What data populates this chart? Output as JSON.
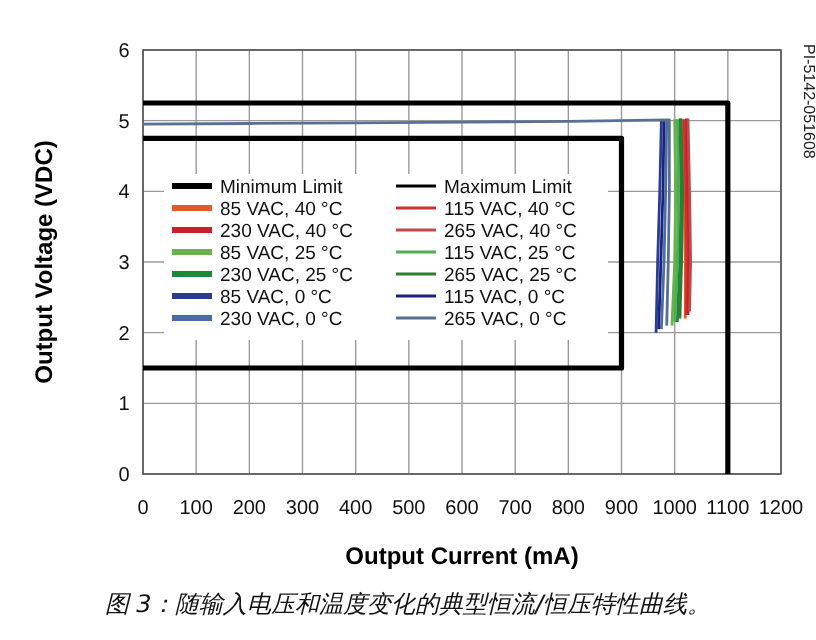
{
  "chart_data": {
    "type": "line",
    "xlabel": "Output Current (mA)",
    "ylabel": "Output Voltage (VDC)",
    "xlim": [
      0,
      1200
    ],
    "ylim": [
      0,
      6
    ],
    "xticks": [
      0,
      100,
      200,
      300,
      400,
      500,
      600,
      700,
      800,
      900,
      1000,
      1100,
      1200
    ],
    "yticks": [
      0,
      1,
      2,
      3,
      4,
      5,
      6
    ],
    "grid": true,
    "legend": "left",
    "annotations": [
      "PI-5142-051608",
      "图 3：随输入电压和温度变化的典型恒流/恒压特性曲线。"
    ],
    "series": [
      {
        "name": "Minimum Limit",
        "color": "#000000",
        "x": [
          0,
          900,
          900,
          0
        ],
        "values": [
          4.75,
          4.75,
          1.5,
          1.5
        ]
      },
      {
        "name": "Maximum Limit",
        "color": "#000000",
        "x": [
          0,
          1100,
          1100
        ],
        "values": [
          5.25,
          5.25,
          0
        ]
      },
      {
        "name": "85 VAC, 40 °C",
        "color": "#e05a2a",
        "x": [
          1015,
          1018,
          1020,
          1020
        ],
        "values": [
          5.02,
          4.0,
          3.0,
          2.2
        ]
      },
      {
        "name": "115 VAC, 40 °C",
        "color": "#d43030",
        "x": [
          1018,
          1021,
          1023,
          1022
        ],
        "values": [
          5.02,
          4.0,
          3.0,
          2.25
        ]
      },
      {
        "name": "230 VAC, 40 °C",
        "color": "#c8202a",
        "x": [
          1022,
          1025,
          1027,
          1025
        ],
        "values": [
          5.03,
          4.0,
          3.0,
          2.25
        ]
      },
      {
        "name": "265 VAC, 40 °C",
        "color": "#c04848",
        "x": [
          1025,
          1028,
          1030,
          1028
        ],
        "values": [
          5.03,
          4.0,
          3.0,
          2.3
        ]
      },
      {
        "name": "85 VAC, 25 °C",
        "color": "#6ab04c",
        "x": [
          1000,
          1002,
          1000,
          995
        ],
        "values": [
          5.02,
          4.0,
          3.0,
          2.1
        ]
      },
      {
        "name": "115 VAC, 25 °C",
        "color": "#4caf50",
        "x": [
          1005,
          1007,
          1005,
          1000
        ],
        "values": [
          5.02,
          4.0,
          3.0,
          2.15
        ]
      },
      {
        "name": "230 VAC, 25 °C",
        "color": "#1a8a3a",
        "x": [
          1010,
          1012,
          1010,
          1005
        ],
        "values": [
          5.03,
          4.0,
          3.0,
          2.15
        ]
      },
      {
        "name": "265 VAC, 25 °C",
        "color": "#2e7d32",
        "x": [
          1012,
          1015,
          1013,
          1010
        ],
        "values": [
          5.03,
          4.0,
          3.0,
          2.2
        ]
      },
      {
        "name": "85 VAC, 0 °C",
        "color": "#2a3d8f",
        "x": [
          975,
          972,
          968,
          965
        ],
        "values": [
          5.0,
          4.0,
          3.0,
          2.0
        ]
      },
      {
        "name": "115 VAC, 0 °C",
        "color": "#1a237e",
        "x": [
          980,
          978,
          974,
          970
        ],
        "values": [
          5.0,
          4.0,
          3.0,
          2.05
        ]
      },
      {
        "name": "230 VAC, 0 °C",
        "color": "#4a6aa8",
        "x": [
          985,
          983,
          980,
          975
        ],
        "values": [
          5.01,
          4.0,
          3.0,
          2.05
        ]
      },
      {
        "name": "265 VAC, 0 °C",
        "color": "#5a7090",
        "x": [
          0,
          200,
          400,
          600,
          800,
          990,
          990,
          988,
          985
        ],
        "values": [
          4.95,
          4.96,
          4.97,
          4.98,
          4.99,
          5.01,
          4.0,
          3.0,
          2.1
        ]
      }
    ]
  }
}
